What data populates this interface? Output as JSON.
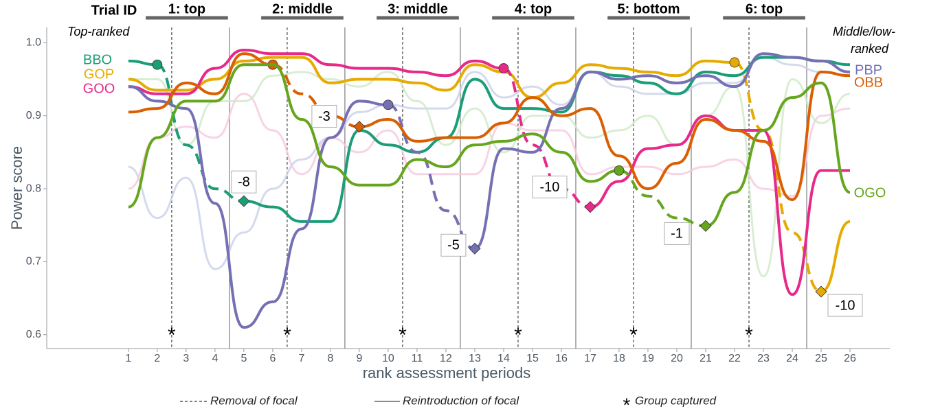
{
  "chart_data": {
    "type": "line",
    "header": "Trial ID",
    "trials": [
      "1: top",
      "2: middle",
      "3: middle",
      "4: top",
      "5: bottom",
      "6: top"
    ],
    "corner_labels": [
      "Top-ranked",
      "Middle/low-",
      "ranked"
    ],
    "y_label": "Power score",
    "x_label": "rank assessment periods",
    "xlim": [
      -1.83,
      27.38
    ],
    "ylim": [
      0.581,
      1.021
    ],
    "xticks": [
      1,
      2,
      3,
      4,
      5,
      6,
      7,
      8,
      9,
      10,
      11,
      12,
      13,
      14,
      15,
      16,
      17,
      18,
      19,
      20,
      21,
      22,
      23,
      24,
      25,
      26
    ],
    "yticks": [
      0.6,
      0.7,
      0.8,
      0.9,
      {
        "value": 1,
        "label": "1.0"
      }
    ],
    "x": [
      1,
      2,
      3,
      4,
      5,
      6,
      7,
      8,
      9,
      10,
      11,
      12,
      13,
      14,
      15,
      16,
      17,
      18,
      19,
      20,
      21,
      22,
      23,
      24,
      25,
      26
    ],
    "removal_times": [
      2.5,
      6.5,
      10.5,
      14.5,
      18.5,
      22.5
    ],
    "reintroduction_times": [
      4.5,
      8.5,
      12.5,
      16.5,
      20.5,
      24.5
    ],
    "capture_times": [
      2.5,
      6.5,
      10.5,
      14.5,
      18.5,
      22.5
    ],
    "annotations": [
      -8,
      -3,
      -5,
      -10,
      -1,
      -10
    ],
    "legend": [
      "Removal of focal",
      "Reintroduction of focal",
      "Group captured"
    ],
    "background_series": [
      {
        "color": "#c9d0ea",
        "values": [
          0.83,
          0.76,
          0.815,
          0.69,
          0.74,
          0.8,
          0.84,
          0.87,
          0.905,
          0.915,
          0.91,
          0.91,
          0.96,
          0.925,
          0.94,
          0.915,
          0.96,
          0.94,
          0.93,
          0.93,
          0.945,
          0.945,
          0.98,
          0.97,
          0.96,
          0.955
        ]
      },
      {
        "color": "#f6c8de",
        "values": [
          0.8,
          0.87,
          0.885,
          0.87,
          0.93,
          0.88,
          0.82,
          0.87,
          0.85,
          0.88,
          0.82,
          0.82,
          0.82,
          0.89,
          0.88,
          0.88,
          0.82,
          0.83,
          0.83,
          0.82,
          0.83,
          0.84,
          0.8,
          0.79,
          0.9,
          0.91
        ]
      },
      {
        "color": "#cfe8c8",
        "values": [
          0.95,
          0.95,
          0.86,
          0.92,
          0.92,
          0.955,
          0.96,
          0.95,
          0.94,
          0.96,
          0.92,
          0.86,
          0.91,
          0.85,
          0.9,
          0.9,
          0.87,
          0.88,
          0.9,
          0.86,
          0.9,
          0.94,
          0.68,
          0.95,
          0.89,
          0.93
        ]
      }
    ],
    "series": [
      {
        "name": "BBO",
        "color": "#1b9e77",
        "values": [
          0.975,
          0.97,
          null,
          null,
          0.783,
          0.775,
          0.755,
          0.755,
          0.88,
          0.86,
          0.85,
          0.87,
          0.95,
          0.91,
          0.91,
          0.905,
          0.96,
          0.955,
          0.945,
          0.93,
          0.96,
          0.955,
          0.98,
          0.98,
          0.975,
          0.97
        ],
        "dashed": [
          null,
          0.97,
          0.86,
          0.8,
          0.783,
          null,
          null,
          null,
          null,
          null,
          null,
          null,
          null,
          null,
          null,
          null,
          null,
          null,
          null,
          null,
          null,
          null,
          null,
          null,
          null,
          null
        ]
      },
      {
        "name": "GOP",
        "color": "#e6ab02",
        "values": [
          0.95,
          0.935,
          0.935,
          0.95,
          0.975,
          0.98,
          0.98,
          0.945,
          0.95,
          0.95,
          0.945,
          0.935,
          0.97,
          0.96,
          0.925,
          0.945,
          0.97,
          0.965,
          0.96,
          0.955,
          0.975,
          0.973,
          null,
          null,
          0.659,
          0.755
        ],
        "dashed": [
          null,
          null,
          null,
          null,
          null,
          null,
          null,
          null,
          null,
          null,
          null,
          null,
          null,
          null,
          null,
          null,
          null,
          null,
          null,
          null,
          null,
          0.973,
          0.88,
          0.74,
          0.659,
          null
        ]
      },
      {
        "name": "GOO",
        "color": "#e7298a",
        "values": [
          0.94,
          0.93,
          0.93,
          0.965,
          0.99,
          0.985,
          0.985,
          0.97,
          0.965,
          0.965,
          0.96,
          0.955,
          0.975,
          0.965,
          null,
          null,
          0.775,
          0.81,
          0.855,
          0.86,
          0.9,
          0.88,
          0.88,
          0.655,
          0.825,
          0.825
        ],
        "dashed": [
          null,
          null,
          null,
          null,
          null,
          null,
          null,
          null,
          null,
          null,
          null,
          null,
          null,
          0.965,
          0.86,
          0.8,
          0.775,
          null,
          null,
          null,
          null,
          null,
          null,
          null,
          null,
          null
        ]
      },
      {
        "name": "PBP",
        "color": "#7570b3",
        "values": [
          0.94,
          0.92,
          0.91,
          0.78,
          0.61,
          0.645,
          0.745,
          0.87,
          0.92,
          0.915,
          null,
          null,
          0.718,
          0.855,
          0.85,
          0.91,
          0.96,
          0.95,
          0.955,
          0.945,
          0.955,
          0.94,
          0.985,
          0.98,
          0.975,
          0.96
        ],
        "dashed": [
          null,
          null,
          null,
          null,
          null,
          null,
          null,
          null,
          null,
          0.915,
          0.85,
          0.77,
          0.718,
          null,
          null,
          null,
          null,
          null,
          null,
          null,
          null,
          null,
          null,
          null,
          null,
          null
        ]
      },
      {
        "name": "OBB",
        "color": "#d95f02",
        "values": [
          0.905,
          0.91,
          0.945,
          0.93,
          0.985,
          0.97,
          null,
          null,
          0.885,
          0.895,
          0.865,
          0.87,
          0.87,
          0.89,
          0.925,
          0.9,
          0.91,
          0.845,
          0.8,
          0.835,
          0.895,
          0.88,
          0.865,
          0.785,
          0.96,
          0.955
        ],
        "dashed": [
          null,
          null,
          null,
          null,
          null,
          0.97,
          0.93,
          0.9,
          0.885,
          null,
          null,
          null,
          null,
          null,
          null,
          null,
          null,
          null,
          null,
          null,
          null,
          null,
          null,
          null,
          null,
          null
        ]
      },
      {
        "name": "OGO",
        "color": "#66a61e",
        "values": [
          0.775,
          0.87,
          0.92,
          0.92,
          0.97,
          0.97,
          0.895,
          0.83,
          0.805,
          0.805,
          0.84,
          0.83,
          0.86,
          0.865,
          0.875,
          0.85,
          0.81,
          0.825,
          null,
          null,
          0.749,
          0.795,
          0.88,
          0.925,
          0.945,
          0.795
        ],
        "dashed": [
          null,
          null,
          null,
          null,
          null,
          null,
          null,
          null,
          null,
          null,
          null,
          null,
          null,
          null,
          null,
          null,
          null,
          0.825,
          0.79,
          0.76,
          0.749,
          null,
          null,
          null,
          null,
          null
        ]
      }
    ]
  }
}
